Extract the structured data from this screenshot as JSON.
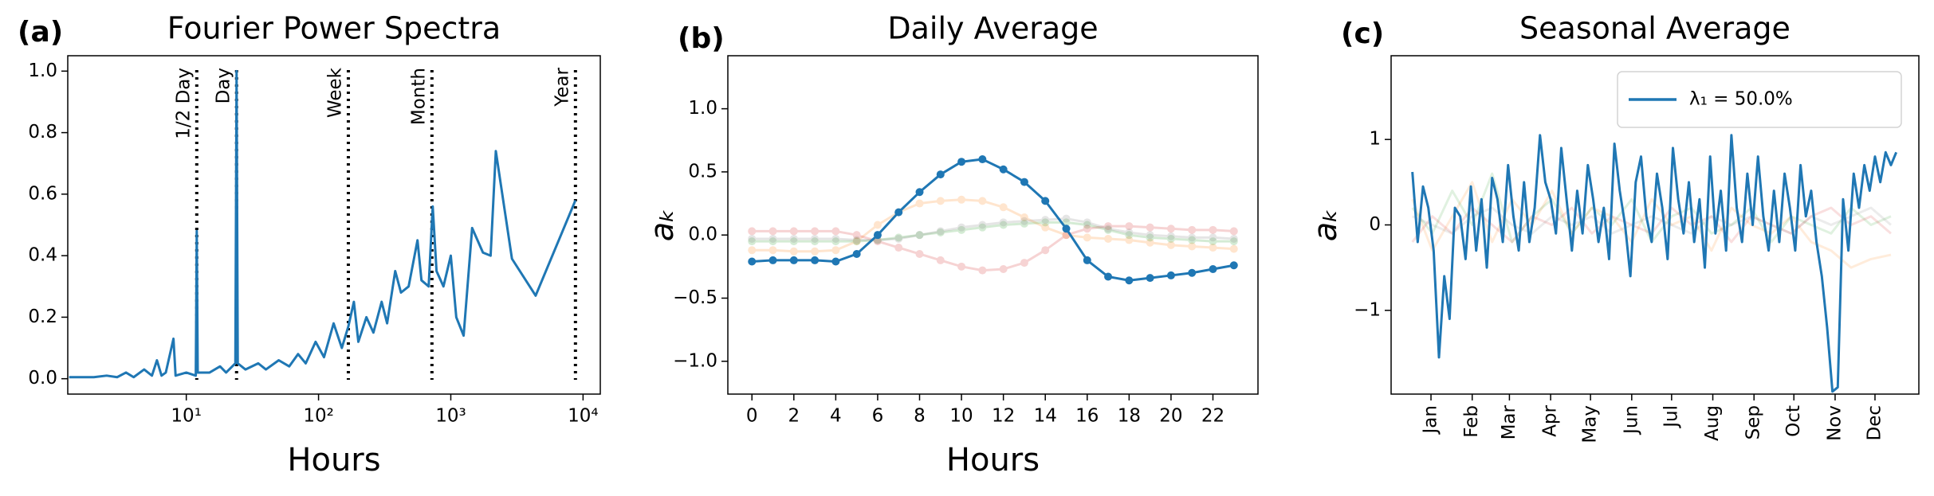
{
  "chart_data": [
    {
      "type": "line",
      "panel_label": "(a)",
      "title": "Fourier Power Spectra",
      "xlabel": "Hours",
      "xlog": true,
      "xlim": [
        1.27,
        13500
      ],
      "xticks": [
        {
          "value": 10,
          "label": "10¹"
        },
        {
          "value": 100,
          "label": "10²"
        },
        {
          "value": 1000,
          "label": "10³"
        },
        {
          "value": 10000,
          "label": "10⁴"
        }
      ],
      "ylim": [
        -0.05,
        1.05
      ],
      "yticks": [
        {
          "value": 0,
          "label": "0.0"
        },
        {
          "value": 0.2,
          "label": "0.2"
        },
        {
          "value": 0.4,
          "label": "0.4"
        },
        {
          "value": 0.6,
          "label": "0.6"
        },
        {
          "value": 0.8,
          "label": "0.8"
        },
        {
          "value": 1,
          "label": "1.0"
        }
      ],
      "vlines": [
        {
          "value": 12,
          "label": "1/2 Day"
        },
        {
          "value": 24,
          "label": "Day"
        },
        {
          "value": 168,
          "label": "Week"
        },
        {
          "value": 720,
          "label": "Month"
        },
        {
          "value": 8760,
          "label": "Year"
        }
      ],
      "series": [
        {
          "color": "#1f77b4",
          "x": [
            1.3,
            2,
            2.5,
            3,
            3.5,
            4,
            4.8,
            5.5,
            6,
            6.5,
            7,
            8,
            8.3,
            10,
            11.8,
            12,
            12.2,
            15,
            18,
            20,
            23.5,
            24,
            24.5,
            28,
            35,
            40,
            50,
            60,
            70,
            80,
            95,
            110,
            130,
            150,
            168,
            185,
            200,
            230,
            260,
            300,
            330,
            380,
            420,
            480,
            560,
            600,
            680,
            730,
            780,
            880,
            1000,
            1100,
            1250,
            1450,
            1750,
            2000,
            2190,
            2900,
            4380,
            8760
          ],
          "values": [
            0.005,
            0.005,
            0.01,
            0.005,
            0.02,
            0.005,
            0.03,
            0.01,
            0.06,
            0.01,
            0.02,
            0.13,
            0.01,
            0.02,
            0.01,
            0.48,
            0.02,
            0.02,
            0.04,
            0.02,
            0.05,
            1.0,
            0.05,
            0.03,
            0.05,
            0.03,
            0.06,
            0.04,
            0.08,
            0.05,
            0.12,
            0.07,
            0.18,
            0.1,
            0.17,
            0.25,
            0.12,
            0.2,
            0.15,
            0.25,
            0.18,
            0.35,
            0.28,
            0.3,
            0.45,
            0.32,
            0.3,
            0.56,
            0.35,
            0.3,
            0.4,
            0.2,
            0.14,
            0.49,
            0.41,
            0.4,
            0.74,
            0.39,
            0.27,
            0.58
          ]
        }
      ]
    },
    {
      "type": "line",
      "panel_label": "(b)",
      "title": "Daily Average",
      "xlabel": "Hours",
      "ylabel": "aₖ",
      "markers": true,
      "xlim": [
        -1.15,
        24.15
      ],
      "xticks": [
        0,
        2,
        4,
        6,
        8,
        10,
        12,
        14,
        16,
        18,
        20,
        22
      ],
      "ylim": [
        -1.26,
        1.42
      ],
      "yticks": [
        {
          "value": -1,
          "label": "−1.0"
        },
        {
          "value": -0.5,
          "label": "−0.5"
        },
        {
          "value": 0,
          "label": "0.0"
        },
        {
          "value": 0.5,
          "label": "0.5"
        },
        {
          "value": 1,
          "label": "1.0"
        }
      ],
      "x": [
        0,
        1,
        2,
        3,
        4,
        5,
        6,
        7,
        8,
        9,
        10,
        11,
        12,
        13,
        14,
        15,
        16,
        17,
        18,
        19,
        20,
        21,
        22,
        23
      ],
      "series": [
        {
          "color": "#ff7f0e",
          "opacity": 0.2,
          "values": [
            -0.12,
            -0.12,
            -0.13,
            -0.13,
            -0.12,
            -0.05,
            0.08,
            0.18,
            0.25,
            0.27,
            0.28,
            0.27,
            0.22,
            0.14,
            0.06,
            0.0,
            -0.02,
            -0.03,
            -0.04,
            -0.06,
            -0.08,
            -0.09,
            -0.1,
            -0.11
          ]
        },
        {
          "color": "#2ca02c",
          "opacity": 0.2,
          "values": [
            -0.05,
            -0.05,
            -0.05,
            -0.05,
            -0.05,
            -0.05,
            -0.04,
            -0.02,
            0.0,
            0.02,
            0.04,
            0.06,
            0.08,
            0.09,
            0.1,
            0.1,
            0.08,
            0.04,
            0.0,
            -0.02,
            -0.03,
            -0.04,
            -0.05,
            -0.05
          ]
        },
        {
          "color": "#d62728",
          "opacity": 0.2,
          "values": [
            0.03,
            0.03,
            0.03,
            0.03,
            0.03,
            0.0,
            -0.05,
            -0.1,
            -0.15,
            -0.2,
            -0.25,
            -0.28,
            -0.27,
            -0.22,
            -0.12,
            0.0,
            0.05,
            0.07,
            0.07,
            0.06,
            0.05,
            0.04,
            0.04,
            0.03
          ]
        },
        {
          "color": "#7f7f7f",
          "opacity": 0.2,
          "values": [
            -0.03,
            -0.03,
            -0.03,
            -0.03,
            -0.03,
            -0.04,
            -0.04,
            -0.03,
            0.0,
            0.03,
            0.06,
            0.08,
            0.1,
            0.11,
            0.12,
            0.13,
            0.1,
            0.05,
            0.02,
            0.0,
            -0.01,
            -0.02,
            -0.02,
            -0.03
          ]
        },
        {
          "color": "#1f77b4",
          "opacity": 1,
          "values": [
            -0.21,
            -0.2,
            -0.2,
            -0.2,
            -0.21,
            -0.15,
            0,
            0.18,
            0.34,
            0.48,
            0.58,
            0.6,
            0.52,
            0.42,
            0.27,
            0.05,
            -0.2,
            -0.33,
            -0.36,
            -0.34,
            -0.32,
            -0.3,
            -0.27,
            -0.24
          ]
        }
      ]
    },
    {
      "type": "line",
      "panel_label": "(c)",
      "title": "Seasonal Average",
      "ylabel": "aₖ",
      "legend": "upper right",
      "xlim": [
        -15,
        382
      ],
      "xticks": [
        {
          "value": 15,
          "label": "Jan"
        },
        {
          "value": 46,
          "label": "Feb"
        },
        {
          "value": 74,
          "label": "Mar"
        },
        {
          "value": 105,
          "label": "Apr"
        },
        {
          "value": 135,
          "label": "May"
        },
        {
          "value": 166,
          "label": "Jun"
        },
        {
          "value": 196,
          "label": "Jul"
        },
        {
          "value": 227,
          "label": "Aug"
        },
        {
          "value": 258,
          "label": "Sep"
        },
        {
          "value": 288,
          "label": "Oct"
        },
        {
          "value": 319,
          "label": "Nov"
        },
        {
          "value": 349,
          "label": "Dec"
        }
      ],
      "ylim": [
        -1.98,
        1.98
      ],
      "yticks": [
        {
          "value": -1,
          "label": "−1"
        },
        0,
        1
      ],
      "series": [
        {
          "color": "#ff7f0e",
          "opacity": 0.15,
          "x": [
            1,
            16,
            31,
            46,
            61,
            76,
            91,
            106,
            121,
            136,
            151,
            166,
            181,
            196,
            211,
            226,
            241,
            256,
            271,
            286,
            301,
            316,
            331,
            346,
            361
          ],
          "values": [
            0.3,
            -0.3,
            0.1,
            0.5,
            -0.2,
            0.3,
            0.0,
            0.4,
            -0.1,
            0.2,
            0.1,
            -0.2,
            0.3,
            0.0,
            0.1,
            -0.3,
            0.2,
            0.0,
            -0.1,
            0.1,
            -0.2,
            -0.3,
            -0.5,
            -0.4,
            -0.35
          ]
        },
        {
          "color": "#2ca02c",
          "opacity": 0.15,
          "x": [
            1,
            16,
            31,
            46,
            61,
            76,
            91,
            106,
            121,
            136,
            151,
            166,
            181,
            196,
            211,
            226,
            241,
            256,
            271,
            286,
            301,
            316,
            331,
            346,
            361
          ],
          "values": [
            0.2,
            -0.1,
            0.4,
            0.0,
            0.6,
            -0.2,
            0.1,
            0.3,
            -0.1,
            0.2,
            0.0,
            0.3,
            -0.2,
            0.1,
            0.2,
            -0.1,
            0.0,
            0.2,
            -0.2,
            0.1,
            0.0,
            -0.1,
            0.2,
            0.0,
            0.1
          ]
        },
        {
          "color": "#d62728",
          "opacity": 0.15,
          "x": [
            1,
            16,
            31,
            46,
            61,
            76,
            91,
            106,
            121,
            136,
            151,
            166,
            181,
            196,
            211,
            226,
            241,
            256,
            271,
            286,
            301,
            316,
            331,
            346,
            361
          ],
          "values": [
            -0.2,
            0.1,
            -0.1,
            0.2,
            0.0,
            -0.2,
            0.1,
            0.0,
            0.2,
            -0.1,
            0.1,
            0.0,
            -0.1,
            0.2,
            0.0,
            0.1,
            -0.2,
            0.1,
            0.0,
            -0.1,
            0.1,
            0.2,
            0.0,
            0.1,
            -0.1
          ]
        },
        {
          "color": "#7f7f7f",
          "opacity": 0.15,
          "x": [
            1,
            16,
            31,
            46,
            61,
            76,
            91,
            106,
            121,
            136,
            151,
            166,
            181,
            196,
            211,
            226,
            241,
            256,
            271,
            286,
            301,
            316,
            331,
            346,
            361
          ],
          "values": [
            0.1,
            0.0,
            -0.1,
            0.1,
            0.2,
            0.0,
            -0.1,
            0.1,
            0.0,
            0.1,
            -0.1,
            0.0,
            0.1,
            0.0,
            -0.1,
            0.1,
            0.0,
            0.1,
            0.0,
            -0.1,
            0.1,
            0.0,
            0.1,
            0.2,
            0.0
          ]
        },
        {
          "name": "λ₁ = 50.0%",
          "color": "#1f77b4",
          "opacity": 1,
          "x": [
            1,
            5,
            9,
            13,
            17,
            21,
            25,
            29,
            33,
            37,
            41,
            45,
            49,
            53,
            57,
            61,
            65,
            69,
            73,
            77,
            81,
            85,
            89,
            93,
            97,
            101,
            105,
            109,
            113,
            117,
            121,
            125,
            129,
            133,
            137,
            141,
            145,
            149,
            153,
            157,
            161,
            165,
            169,
            173,
            177,
            181,
            185,
            189,
            193,
            197,
            201,
            205,
            209,
            213,
            217,
            221,
            225,
            229,
            233,
            237,
            241,
            245,
            249,
            253,
            257,
            261,
            265,
            269,
            273,
            277,
            281,
            285,
            289,
            293,
            297,
            301,
            305,
            309,
            313,
            317,
            321,
            325,
            329,
            333,
            337,
            341,
            345,
            349,
            353,
            357,
            361,
            365
          ],
          "values": [
            0.62,
            -0.2,
            0.45,
            0.2,
            -0.3,
            -1.55,
            -0.6,
            -1.1,
            0.2,
            0.1,
            -0.4,
            0.45,
            -0.3,
            0.3,
            -0.5,
            0.55,
            0.3,
            -0.2,
            0.7,
            0.1,
            -0.3,
            0.5,
            -0.2,
            0.2,
            1.05,
            0.5,
            0.3,
            -0.1,
            0.9,
            0.3,
            -0.3,
            0.4,
            -0.1,
            0.7,
            0.3,
            -0.2,
            0.2,
            -0.4,
            0.95,
            0.4,
            0.0,
            -0.6,
            0.5,
            0.8,
            0.1,
            -0.2,
            0.6,
            0.2,
            -0.4,
            0.9,
            0.3,
            -0.1,
            0.5,
            -0.2,
            0.3,
            -0.5,
            0.8,
            -0.1,
            0.4,
            -0.3,
            1.05,
            0.2,
            -0.2,
            0.6,
            0.0,
            0.8,
            0.1,
            -0.3,
            0.4,
            -0.2,
            0.6,
            0.2,
            -0.3,
            0.7,
            0.1,
            0.4,
            -0.2,
            -0.6,
            -1.2,
            -1.95,
            -1.9,
            0.3,
            -0.3,
            0.6,
            0.2,
            0.7,
            0.4,
            0.8,
            0.5,
            0.85,
            0.7,
            0.85
          ]
        }
      ]
    }
  ]
}
